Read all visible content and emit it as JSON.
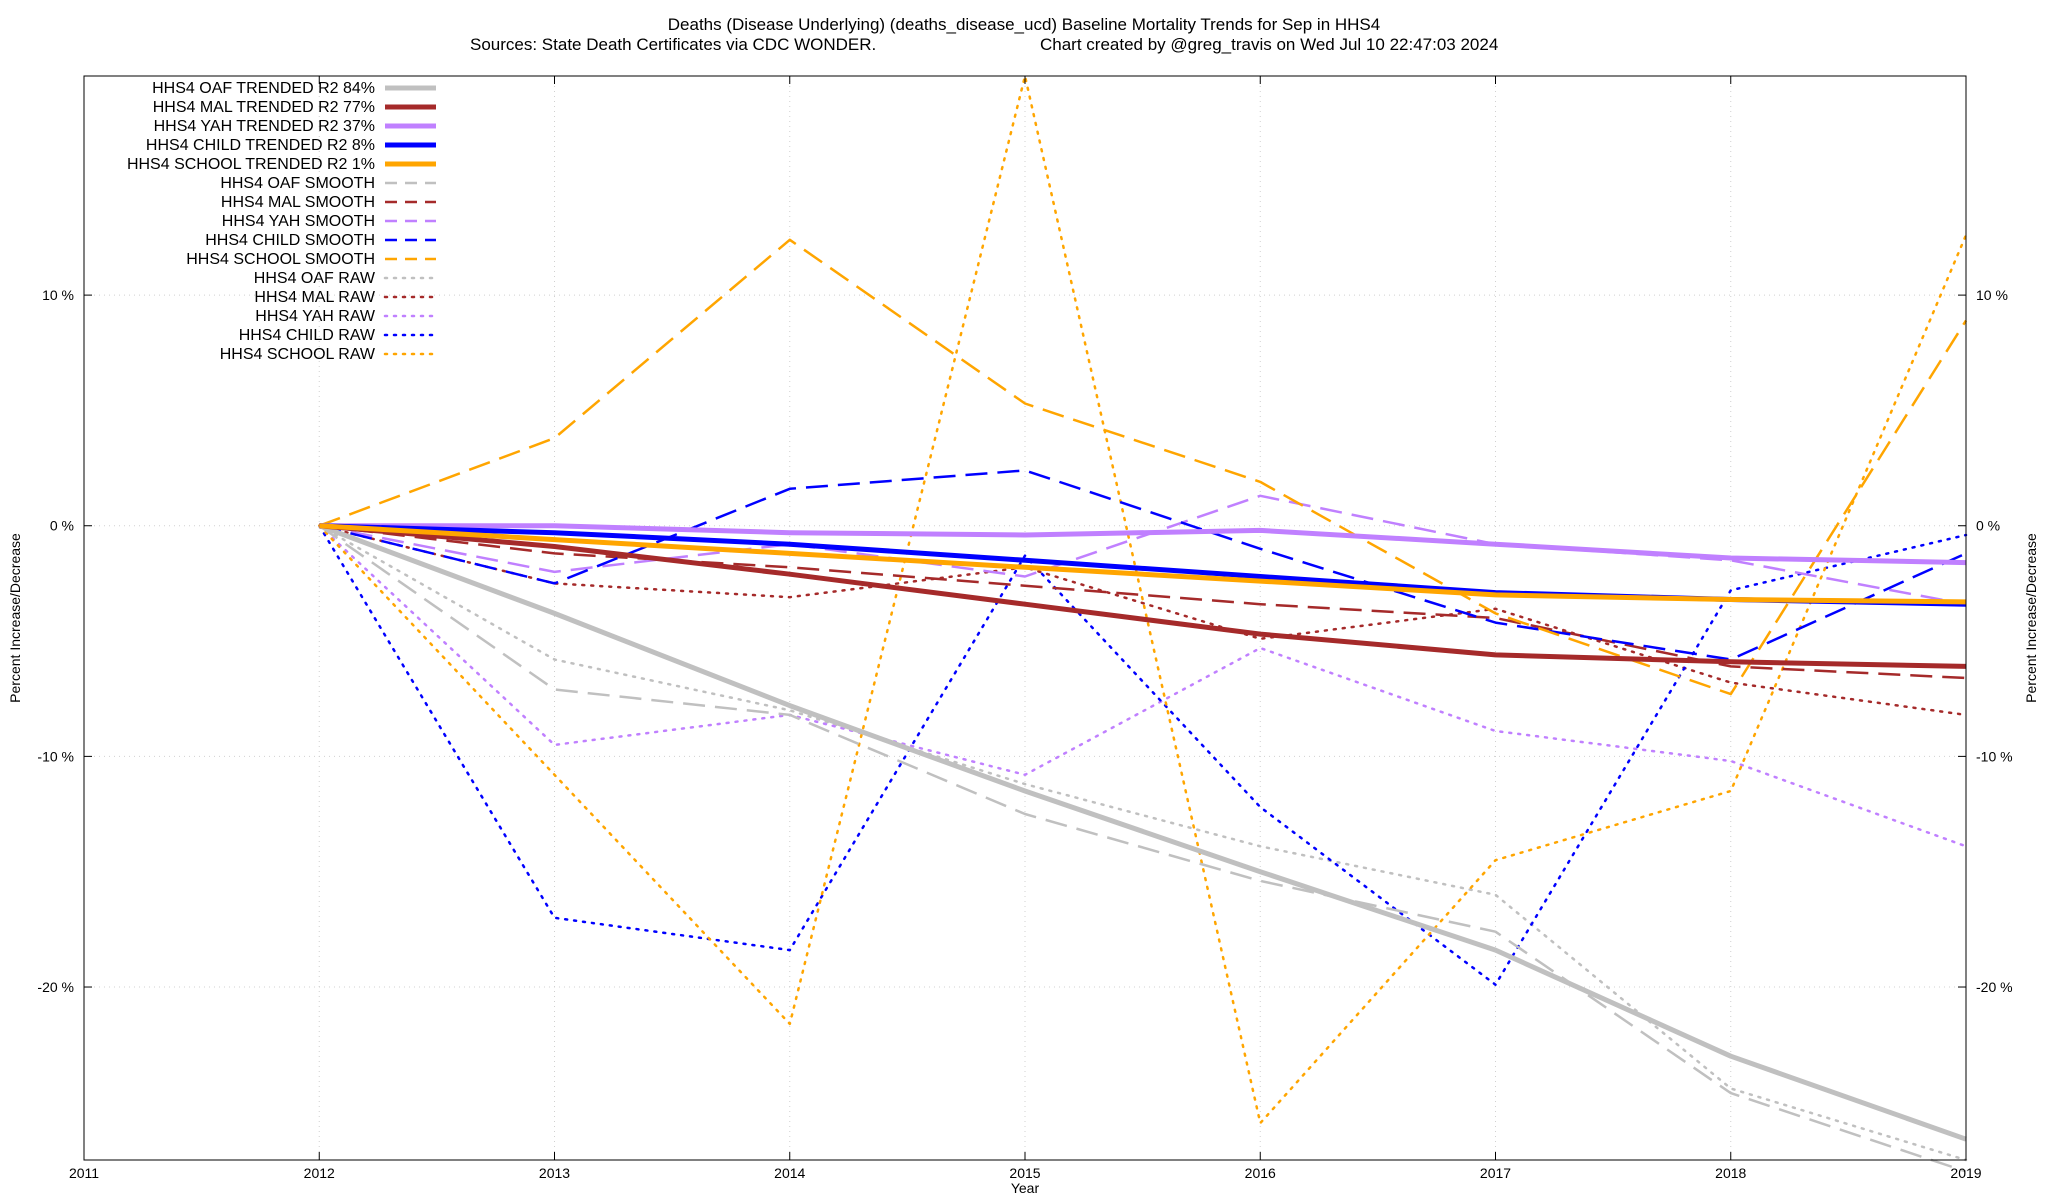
{
  "chart_data": {
    "type": "line",
    "title_line1": "Deaths (Disease Underlying) (deaths_disease_ucd)  Baseline Mortality Trends for Sep in HHS4",
    "title_line2_left": "Sources: State Death Certificates via CDC WONDER.",
    "title_line2_right": "Chart created by @greg_travis on Wed Jul 10 22:47:03 2024",
    "xlabel": "Year",
    "ylabel_left": "Percent Increase/Decrease",
    "ylabel_right": "Percent Increase/Decrease",
    "xlim": [
      2011,
      2019
    ],
    "ylim": [
      -27.5,
      19.5
    ],
    "x_ticks": [
      2011,
      2012,
      2013,
      2014,
      2015,
      2016,
      2017,
      2018,
      2019
    ],
    "y_ticks": [
      {
        "value": 10,
        "label": "10 %"
      },
      {
        "value": 0,
        "label": "0 %"
      },
      {
        "value": -10,
        "label": "-10 %"
      },
      {
        "value": -20,
        "label": "-20 %"
      }
    ],
    "grid": true,
    "legend_position": "top-left",
    "x": [
      2012,
      2013,
      2014,
      2015,
      2016,
      2017,
      2018,
      2019
    ],
    "series": [
      {
        "name": "HHS4 OAF TRENDED R2",
        "r2": "84%",
        "color": "#c0c0c0",
        "style": "solid",
        "values": [
          0,
          -3.8,
          -7.8,
          -11.5,
          -15.0,
          -18.4,
          -23.0,
          -26.6
        ]
      },
      {
        "name": "HHS4 MAL TRENDED R2",
        "r2": "77%",
        "color": "#a52a2a",
        "style": "solid",
        "values": [
          0,
          -0.9,
          -2.1,
          -3.4,
          -4.7,
          -5.6,
          -5.9,
          -6.1
        ]
      },
      {
        "name": "HHS4 YAH TRENDED R2",
        "r2": "37%",
        "color": "#c080ff",
        "style": "solid",
        "values": [
          0,
          0,
          -0.3,
          -0.4,
          -0.2,
          -0.8,
          -1.4,
          -1.6
        ]
      },
      {
        "name": "HHS4 CHILD TRENDED R2",
        "r2": "8%",
        "color": "#0000ff",
        "style": "solid",
        "values": [
          0,
          -0.3,
          -0.8,
          -1.5,
          -2.2,
          -2.9,
          -3.2,
          -3.4
        ]
      },
      {
        "name": "HHS4 SCHOOL TRENDED R2",
        "r2": "1%",
        "color": "#ffa500",
        "style": "solid",
        "values": [
          0,
          -0.6,
          -1.2,
          -1.8,
          -2.4,
          -3.0,
          -3.2,
          -3.3
        ]
      },
      {
        "name": "HHS4 OAF SMOOTH",
        "color": "#c0c0c0",
        "style": "dashed",
        "values": [
          0,
          -7.1,
          -8.2,
          -12.5,
          -15.4,
          -17.6,
          -24.6,
          -28.0
        ]
      },
      {
        "name": "HHS4 MAL SMOOTH",
        "color": "#a52a2a",
        "style": "dashed",
        "values": [
          0,
          -1.2,
          -1.8,
          -2.6,
          -3.4,
          -4.0,
          -6.1,
          -6.6
        ]
      },
      {
        "name": "HHS4 YAH SMOOTH",
        "color": "#c080ff",
        "style": "dashed",
        "values": [
          0,
          -2.0,
          -0.8,
          -2.2,
          1.3,
          -0.8,
          -1.5,
          -3.4
        ]
      },
      {
        "name": "HHS4 CHILD SMOOTH",
        "color": "#0000ff",
        "style": "dashed",
        "values": [
          0,
          -2.5,
          1.6,
          2.4,
          -1.0,
          -4.2,
          -5.8,
          -1.2
        ]
      },
      {
        "name": "HHS4 SCHOOL SMOOTH",
        "color": "#ffa500",
        "style": "dashed",
        "values": [
          0,
          3.8,
          12.4,
          5.3,
          1.9,
          -3.8,
          -7.3,
          8.9
        ]
      },
      {
        "name": "HHS4 OAF RAW",
        "color": "#c0c0c0",
        "style": "dotted",
        "values": [
          0,
          -5.8,
          -8.0,
          -11.2,
          -13.9,
          -16.0,
          -24.4,
          -27.5
        ]
      },
      {
        "name": "HHS4 MAL RAW",
        "color": "#a52a2a",
        "style": "dotted",
        "values": [
          0,
          -2.5,
          -3.1,
          -1.8,
          -4.9,
          -3.6,
          -6.8,
          -8.2
        ]
      },
      {
        "name": "HHS4 YAH RAW",
        "color": "#c080ff",
        "style": "dotted",
        "values": [
          0,
          -9.5,
          -8.2,
          -10.8,
          -5.3,
          -8.9,
          -10.2,
          -13.9
        ]
      },
      {
        "name": "HHS4 CHILD RAW",
        "color": "#0000ff",
        "style": "dotted",
        "values": [
          0,
          -17.0,
          -18.4,
          -1.3,
          -12.2,
          -19.9,
          -2.8,
          -0.4
        ]
      },
      {
        "name": "HHS4 SCHOOL RAW",
        "color": "#ffa500",
        "style": "dotted",
        "values": [
          0,
          -10.8,
          -21.6,
          19.5,
          -25.9,
          -14.5,
          -11.5,
          12.6
        ]
      }
    ]
  }
}
